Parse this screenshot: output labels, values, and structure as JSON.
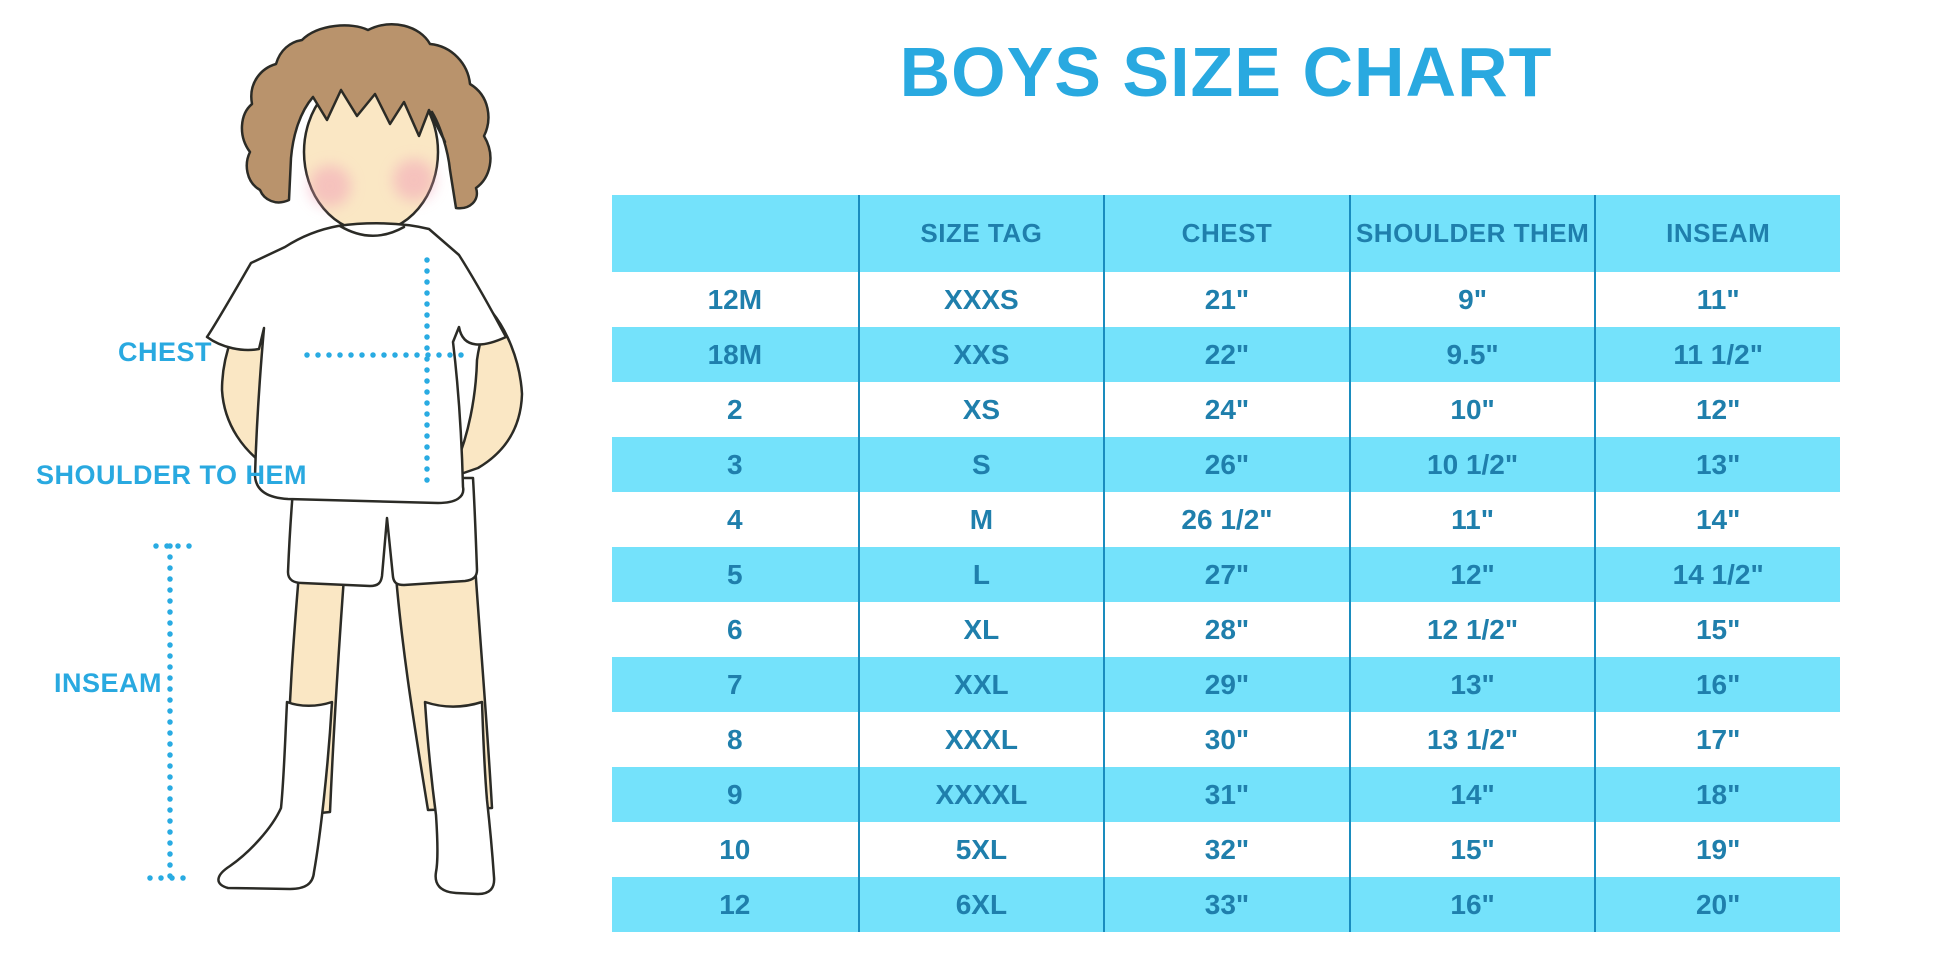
{
  "title": "BOYS SIZE CHART",
  "colors": {
    "accent_blue": "#29A9E0",
    "stripe_cyan": "#74E2FB",
    "table_text": "#1F7FAC",
    "divider_blue": "#1A8CBE",
    "dotted_line": "#29ABE2",
    "skin": "#FAE7C4",
    "hair": "#B9936C"
  },
  "diagram": {
    "labels": {
      "chest": "CHEST",
      "shoulder_to_hem": "SHOULDER TO HEM",
      "inseam": "INSEAM"
    }
  },
  "chart_data": {
    "type": "table",
    "title": "BOYS SIZE CHART",
    "columns": [
      "",
      "SIZE TAG",
      "CHEST",
      "SHOULDER THEM",
      "INSEAM"
    ],
    "rows": [
      [
        "12M",
        "XXXS",
        "21\"",
        "9\"",
        "11\""
      ],
      [
        "18M",
        "XXS",
        "22\"",
        "9.5\"",
        "11 1/2\""
      ],
      [
        "2",
        "XS",
        "24\"",
        "10\"",
        "12\""
      ],
      [
        "3",
        "S",
        "26\"",
        "10 1/2\"",
        "13\""
      ],
      [
        "4",
        "M",
        "26 1/2\"",
        "11\"",
        "14\""
      ],
      [
        "5",
        "L",
        "27\"",
        "12\"",
        "14 1/2\""
      ],
      [
        "6",
        "XL",
        "28\"",
        "12 1/2\"",
        "15\""
      ],
      [
        "7",
        "XXL",
        "29\"",
        "13\"",
        "16\""
      ],
      [
        "8",
        "XXXL",
        "30\"",
        "13 1/2\"",
        "17\""
      ],
      [
        "9",
        "XXXXL",
        "31\"",
        "14\"",
        "18\""
      ],
      [
        "10",
        "5XL",
        "32\"",
        "15\"",
        "19\""
      ],
      [
        "12",
        "6XL",
        "33\"",
        "16\"",
        "20\""
      ]
    ]
  }
}
